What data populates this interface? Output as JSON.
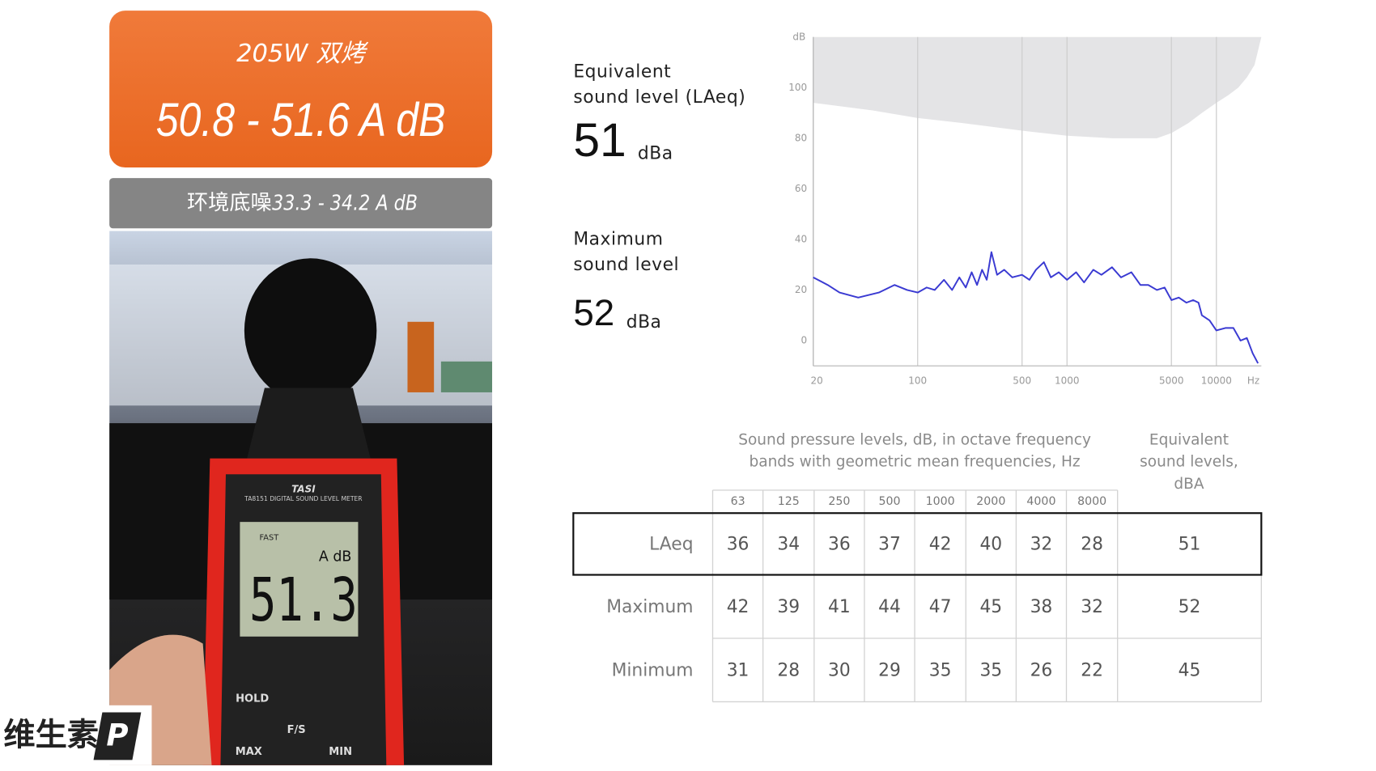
{
  "left_panel": {
    "title": "205W 双烤",
    "range": "50.8 - 51.6 A dB",
    "ambient_label": "环境底噪",
    "ambient_range": "33.3 - 34.2 A dB",
    "meter": {
      "brand": "TASI",
      "model": "TA8151 DIGITAL SOUND LEVEL METER",
      "mode": "FAST",
      "unit": "A dB",
      "reading": "51.3",
      "buttons": [
        "HOLD",
        "F/S",
        "MAX",
        "MIN"
      ]
    },
    "logo": {
      "text": "维生素",
      "mark": "P"
    }
  },
  "summary": {
    "equivalent_label": [
      "Equivalent",
      "sound level (LAeq)"
    ],
    "equivalent_value": 51,
    "equivalent_unit": "dBa",
    "maximum_label": [
      "Maximum",
      "sound level"
    ],
    "maximum_value": 52,
    "maximum_unit": "dBa"
  },
  "chart_data": {
    "type": "line",
    "y_label": "dB",
    "x_label": "Hz",
    "log_x": true,
    "grid": "x",
    "xlim": [
      20,
      20000
    ],
    "ylim": [
      -10,
      120
    ],
    "xticks": [
      20,
      100,
      500,
      1000,
      5000,
      10000
    ],
    "yticks": [
      0,
      20,
      40,
      60,
      80,
      100
    ],
    "color": "#3a3ad2",
    "x": [
      20,
      25,
      30,
      40,
      55,
      70,
      85,
      100,
      115,
      130,
      150,
      170,
      190,
      210,
      230,
      250,
      270,
      290,
      312,
      340,
      380,
      430,
      500,
      560,
      620,
      700,
      780,
      880,
      1000,
      1150,
      1300,
      1500,
      1700,
      2000,
      2300,
      2700,
      3100,
      3500,
      4000,
      4500,
      5000,
      5600,
      6300,
      7000,
      7600,
      8000,
      9000,
      10000,
      11500,
      13000,
      14500,
      16000,
      17500,
      19000
    ],
    "values": [
      25,
      22,
      19,
      17,
      19,
      22,
      20,
      19,
      21,
      20,
      24,
      20,
      25,
      21,
      27,
      22,
      28,
      24,
      35,
      26,
      28,
      25,
      26,
      24,
      28,
      31,
      25,
      27,
      24,
      27,
      23,
      28,
      26,
      29,
      25,
      27,
      22,
      22,
      20,
      21,
      16,
      17,
      15,
      16,
      15,
      10,
      8,
      4,
      5,
      5,
      0,
      1,
      -5,
      -9
    ],
    "shaded": {
      "color": "#e4e4e6",
      "x": [
        20,
        50,
        100,
        200,
        500,
        1000,
        2000,
        3000,
        4000,
        5000,
        6500,
        8000,
        10000,
        12000,
        14000,
        16000,
        18000,
        20000
      ],
      "lower": [
        94,
        91,
        88,
        86,
        83,
        81,
        80,
        80,
        80,
        82,
        86,
        90,
        94,
        97,
        100,
        104,
        109,
        120
      ]
    }
  },
  "table": {
    "caption": [
      "Sound pressure levels, dB, in octave frequency",
      "bands with geometric mean frequencies, Hz"
    ],
    "equivalent_caption": [
      "Equivalent",
      "sound levels,",
      "dBA"
    ],
    "columns": [
      "63",
      "125",
      "250",
      "500",
      "1000",
      "2000",
      "4000",
      "8000"
    ],
    "rows": [
      {
        "label": "LAeq",
        "values": [
          36,
          34,
          36,
          37,
          42,
          40,
          32,
          28
        ],
        "equivalent": 51
      },
      {
        "label": "Maximum",
        "values": [
          42,
          39,
          41,
          44,
          47,
          45,
          38,
          32
        ],
        "equivalent": 52
      },
      {
        "label": "Minimum",
        "values": [
          31,
          28,
          30,
          29,
          35,
          35,
          26,
          22
        ],
        "equivalent": 45
      }
    ]
  }
}
